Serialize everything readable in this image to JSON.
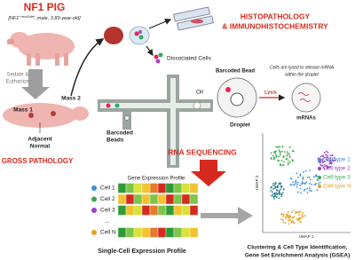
{
  "pig": {
    "title": "NF1 PIG",
    "genotype_prefix": "[NF1",
    "genotype_sup": "+/ex42del",
    "genotype_suffix": ", male, 3.83-year-old]"
  },
  "steps": {
    "sedate": [
      "Sedate &",
      "Euthanize"
    ],
    "mass1": "Mass 1",
    "mass2": "Mass 2",
    "adjacent": [
      "Adjacent",
      "Normal"
    ],
    "gross": "GROSS PATHOLOGY",
    "histo": [
      "HISTOPATHOLOGY",
      "& IMMUNOHISTOCHEMISTRY"
    ],
    "dissociated": "Dissociated Cells"
  },
  "microfluidics": {
    "bead": "Barcoded Bead",
    "note": [
      "Cells are lysed to release mRNA",
      "within the droplet"
    ],
    "lysis": "Lysis",
    "mrnas": "mRNAs",
    "droplet": "Droplet",
    "oil": "Oil",
    "beads": [
      "Barcoded",
      "Beads"
    ]
  },
  "rnaseq": "RNA SEQUENCING",
  "expression": {
    "title": "Gene Expression Profile",
    "cells": [
      "Cell 1",
      "Cell 2",
      "Cell 3",
      "...",
      "Cell N"
    ],
    "caption": "Single-Cell Expression Profile"
  },
  "umap": {
    "x_label": "UMAP 1",
    "y_label": "UMAP 2",
    "legend": [
      "Cell type 1",
      "Cell type 2",
      "Cell type 3",
      "Cell type N"
    ],
    "caption": [
      "Clustering & Cell Type Identification,",
      "Gene Set Enrichment Analysis (GSEA)"
    ]
  }
}
